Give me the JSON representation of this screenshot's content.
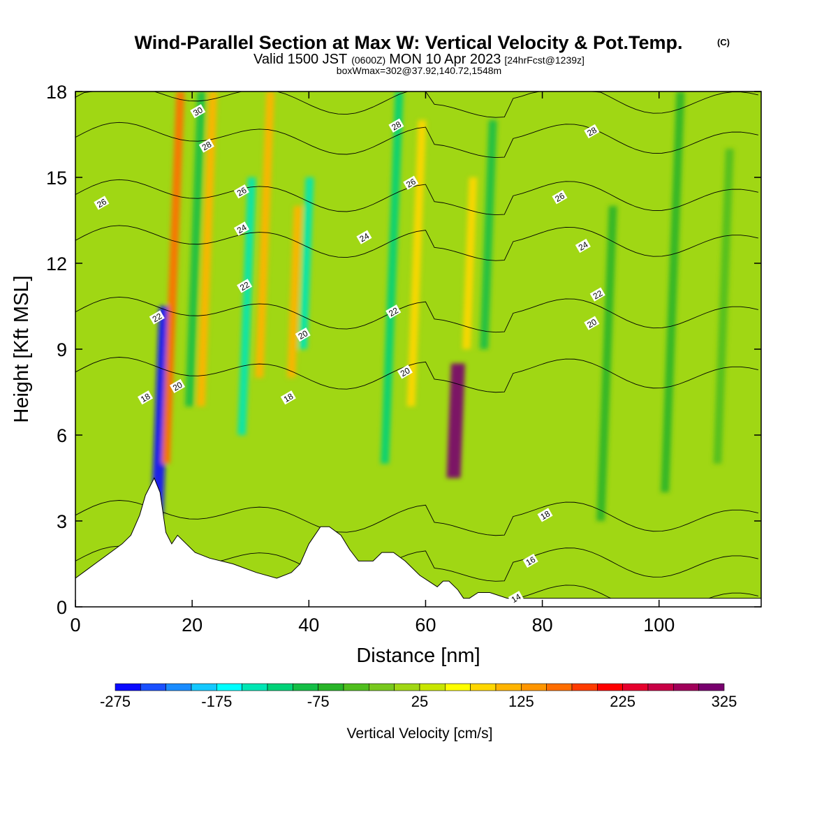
{
  "header": {
    "title": "Wind-Parallel Section at Max W: Vertical Velocity & Pot.Temp.",
    "title_mark": "(C)",
    "valid_prefix": "Valid 1500 JST",
    "valid_z": "(0600Z)",
    "valid_date": "MON 10 Apr 2023",
    "forecast": "[24hrFcst@1239z]",
    "box_info": "boxWmax=302@37.92,140.72,1548m"
  },
  "chart_data": {
    "type": "heatmap",
    "xlabel": "Distance [nm]",
    "ylabel": "Height [Kft MSL]",
    "xlim": [
      0,
      117.5
    ],
    "ylim": [
      0,
      18
    ],
    "x_ticks": [
      "0",
      "20",
      "40",
      "60",
      "80",
      "100"
    ],
    "y_ticks": [
      "0",
      "3",
      "6",
      "9",
      "12",
      "15",
      "18"
    ],
    "colorbar": {
      "label": "Vertical Velocity [cm/s]",
      "tick_labels": [
        "-275",
        "-175",
        "-75",
        "25",
        "125",
        "225",
        "325"
      ],
      "levels": [
        -275,
        -250,
        -225,
        -200,
        -175,
        -150,
        -125,
        -100,
        -75,
        -50,
        -25,
        0,
        25,
        50,
        75,
        100,
        125,
        150,
        175,
        200,
        225,
        250,
        275,
        300,
        325
      ],
      "colors": [
        "#0a0aff",
        "#1a50ff",
        "#1a8cff",
        "#14c8ff",
        "#00ffff",
        "#00e6b4",
        "#00d278",
        "#14be46",
        "#28b428",
        "#50be1e",
        "#78c81e",
        "#a0d714",
        "#c8e600",
        "#ffff00",
        "#ffd700",
        "#ffb400",
        "#ff9600",
        "#ff6e00",
        "#ff3c00",
        "#ff0000",
        "#e6002d",
        "#c80046",
        "#a0005a",
        "#78006e",
        "#50007d"
      ]
    },
    "velocity_bands": [
      {
        "x": 14.0,
        "z_from": 3.2,
        "z_to": 10.5,
        "w": -260
      },
      {
        "x": 15.5,
        "z_from": 5.0,
        "z_to": 18.0,
        "w": 150
      },
      {
        "x": 19.5,
        "z_from": 7.0,
        "z_to": 18.0,
        "w": -100
      },
      {
        "x": 21.5,
        "z_from": 7.0,
        "z_to": 18.0,
        "w": 100
      },
      {
        "x": 28.5,
        "z_from": 6.0,
        "z_to": 15.0,
        "w": -140
      },
      {
        "x": 31.5,
        "z_from": 8.0,
        "z_to": 18.0,
        "w": 110
      },
      {
        "x": 39.0,
        "z_from": 9.0,
        "z_to": 15.0,
        "w": -140
      },
      {
        "x": 37.0,
        "z_from": 8.0,
        "z_to": 14.0,
        "w": 110
      },
      {
        "x": 53.0,
        "z_from": 5.0,
        "z_to": 18.0,
        "w": -110
      },
      {
        "x": 57.5,
        "z_from": 7.0,
        "z_to": 17.0,
        "w": 80
      },
      {
        "x": 64.8,
        "z_from": 4.5,
        "z_to": 8.5,
        "w": 300
      },
      {
        "x": 70.0,
        "z_from": 9.0,
        "z_to": 17.0,
        "w": -80
      },
      {
        "x": 67.0,
        "z_from": 9.0,
        "z_to": 15.0,
        "w": 75
      },
      {
        "x": 90.0,
        "z_from": 3.0,
        "z_to": 14.0,
        "w": -55
      },
      {
        "x": 101.0,
        "z_from": 4.0,
        "z_to": 18.0,
        "w": -60
      },
      {
        "x": 110.0,
        "z_from": 5.0,
        "z_to": 16.0,
        "w": -50
      }
    ],
    "terrain": {
      "x": [
        0,
        2,
        4,
        6,
        8,
        9.5,
        11,
        12,
        13.5,
        14.5,
        15.5,
        16.5,
        17.5,
        19,
        20.5,
        23,
        27,
        31,
        34.5,
        37,
        38.5,
        40,
        42,
        43.5,
        45.5,
        47,
        48.5,
        51,
        52.5,
        54.5,
        56.5,
        59,
        60.5,
        62,
        63,
        64,
        65.5,
        66.5,
        67.5,
        69,
        71,
        74,
        78,
        85,
        90,
        93,
        98,
        117.5
      ],
      "z": [
        1.0,
        1.3,
        1.6,
        1.9,
        2.2,
        2.5,
        3.2,
        3.9,
        4.5,
        4.0,
        2.6,
        2.2,
        2.5,
        2.2,
        1.9,
        1.7,
        1.5,
        1.2,
        1.0,
        1.2,
        1.5,
        2.2,
        2.8,
        2.8,
        2.5,
        2.0,
        1.6,
        1.6,
        1.9,
        1.9,
        1.6,
        1.1,
        0.9,
        0.7,
        0.9,
        0.9,
        0.6,
        0.3,
        0.3,
        0.5,
        0.5,
        0.3,
        0.3,
        0.3,
        0.3,
        0.3,
        0.3,
        0.3
      ]
    },
    "isentropes": {
      "levels": [
        14,
        16,
        18,
        20,
        22,
        24,
        26,
        28,
        30
      ],
      "labels": [
        {
          "text": "30",
          "x": 21.0,
          "z": 17.3
        },
        {
          "text": "28",
          "x": 22.5,
          "z": 16.1
        },
        {
          "text": "28",
          "x": 55.0,
          "z": 16.8
        },
        {
          "text": "28",
          "x": 88.5,
          "z": 16.6
        },
        {
          "text": "26",
          "x": 4.5,
          "z": 14.1
        },
        {
          "text": "26",
          "x": 28.5,
          "z": 14.5
        },
        {
          "text": "26",
          "x": 57.5,
          "z": 14.8
        },
        {
          "text": "26",
          "x": 83.0,
          "z": 14.3
        },
        {
          "text": "24",
          "x": 28.5,
          "z": 13.2
        },
        {
          "text": "24",
          "x": 49.5,
          "z": 12.9
        },
        {
          "text": "24",
          "x": 87.0,
          "z": 12.6
        },
        {
          "text": "22",
          "x": 14.0,
          "z": 10.1
        },
        {
          "text": "22",
          "x": 29.0,
          "z": 11.2
        },
        {
          "text": "22",
          "x": 54.5,
          "z": 10.3
        },
        {
          "text": "22",
          "x": 89.5,
          "z": 10.9
        },
        {
          "text": "20",
          "x": 17.5,
          "z": 7.7
        },
        {
          "text": "20",
          "x": 39.0,
          "z": 9.5
        },
        {
          "text": "20",
          "x": 56.5,
          "z": 8.2
        },
        {
          "text": "20",
          "x": 88.5,
          "z": 9.9
        },
        {
          "text": "18",
          "x": 12.0,
          "z": 7.3
        },
        {
          "text": "18",
          "x": 36.5,
          "z": 7.3
        },
        {
          "text": "18",
          "x": 80.5,
          "z": 3.2
        },
        {
          "text": "16",
          "x": 78.0,
          "z": 1.6
        },
        {
          "text": "14",
          "x": 75.5,
          "z": 0.3
        }
      ]
    },
    "grid": false,
    "legend": "bottom"
  }
}
